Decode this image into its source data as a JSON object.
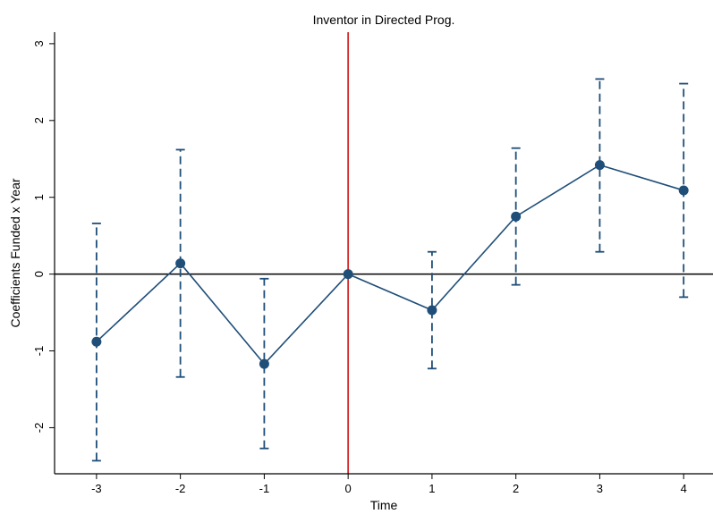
{
  "chart_data": {
    "type": "line",
    "title": "Inventor in Directed Prog.",
    "xlabel": "Time",
    "ylabel": "Coefficients Funded x Year",
    "x": [
      -3,
      -2,
      -1,
      0,
      1,
      2,
      3,
      4
    ],
    "xlim": [
      -3.5,
      4.35
    ],
    "ylim": [
      -2.6,
      3.15
    ],
    "xticks": [
      -3,
      -2,
      -1,
      0,
      1,
      2,
      3,
      4
    ],
    "yticks": [
      -2,
      -1,
      0,
      1,
      2,
      3
    ],
    "series": [
      {
        "values": [
          -0.88,
          0.14,
          -1.17,
          0.0,
          -0.47,
          0.75,
          1.42,
          1.09
        ],
        "ci_low": [
          -2.43,
          -1.34,
          -2.27,
          0.0,
          -1.23,
          -0.14,
          0.29,
          -0.3
        ],
        "ci_high": [
          0.66,
          1.62,
          -0.06,
          0.0,
          0.29,
          1.64,
          2.54,
          2.48
        ]
      }
    ],
    "reference_lines": [
      {
        "axis": "x",
        "value": 0,
        "color": "#d62728"
      },
      {
        "axis": "y",
        "value": 0,
        "color": "#000000"
      }
    ],
    "colors": {
      "series": "#1f4e79",
      "vline": "#d62728",
      "hline": "#000000"
    },
    "grid": false,
    "legend": "none"
  }
}
